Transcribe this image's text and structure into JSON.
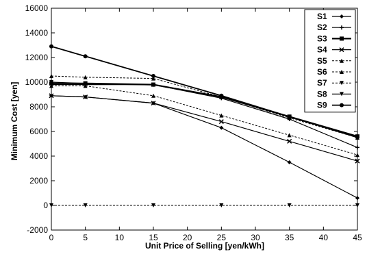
{
  "chart_data": {
    "type": "line",
    "title": "",
    "xlabel": "Unit Price of Selling [yen/kWh]",
    "ylabel": "Minimum Cost [yen]",
    "xlim": [
      0,
      45
    ],
    "ylim": [
      -2000,
      16000
    ],
    "xticks": [
      0,
      5,
      10,
      15,
      20,
      25,
      30,
      35,
      40,
      45
    ],
    "yticks": [
      -2000,
      0,
      2000,
      4000,
      6000,
      8000,
      10000,
      12000,
      14000,
      16000
    ],
    "grid": false,
    "legend_position": "top-right",
    "x": [
      0,
      5,
      15,
      25,
      35,
      45
    ],
    "series": [
      {
        "name": "S1",
        "marker": "diamond",
        "dash": false,
        "width": 1.2,
        "values": [
          8900,
          8800,
          8300,
          6300,
          3500,
          600
        ]
      },
      {
        "name": "S2",
        "marker": "plus",
        "dash": false,
        "width": 1.2,
        "values": [
          9800,
          9800,
          9800,
          8700,
          7000,
          4700
        ]
      },
      {
        "name": "S3",
        "marker": "square",
        "dash": false,
        "width": 2.2,
        "values": [
          9900,
          9900,
          9800,
          8800,
          7200,
          5600
        ]
      },
      {
        "name": "S4",
        "marker": "cross",
        "dash": false,
        "width": 1.2,
        "values": [
          8900,
          8800,
          8300,
          6800,
          5200,
          3600
        ]
      },
      {
        "name": "S5",
        "marker": "triangle",
        "dash": true,
        "width": 1.0,
        "values": [
          9700,
          9700,
          8900,
          7300,
          5700,
          4100
        ]
      },
      {
        "name": "S6",
        "marker": "triangle",
        "dash": true,
        "width": 1.0,
        "values": [
          10500,
          10400,
          10300,
          8800,
          7100,
          5500
        ]
      },
      {
        "name": "S7",
        "marker": "triangle-down",
        "dash": true,
        "width": 1.0,
        "values": [
          0,
          0,
          0,
          0,
          0,
          0
        ]
      },
      {
        "name": "S8",
        "marker": "triangle-down",
        "dash": false,
        "width": 1.2,
        "values": [
          10000,
          9900,
          9800,
          8800,
          7200,
          5500
        ]
      },
      {
        "name": "S9",
        "marker": "circle",
        "dash": false,
        "width": 1.8,
        "values": [
          12900,
          12100,
          10500,
          8900,
          7200,
          5600
        ]
      }
    ]
  }
}
